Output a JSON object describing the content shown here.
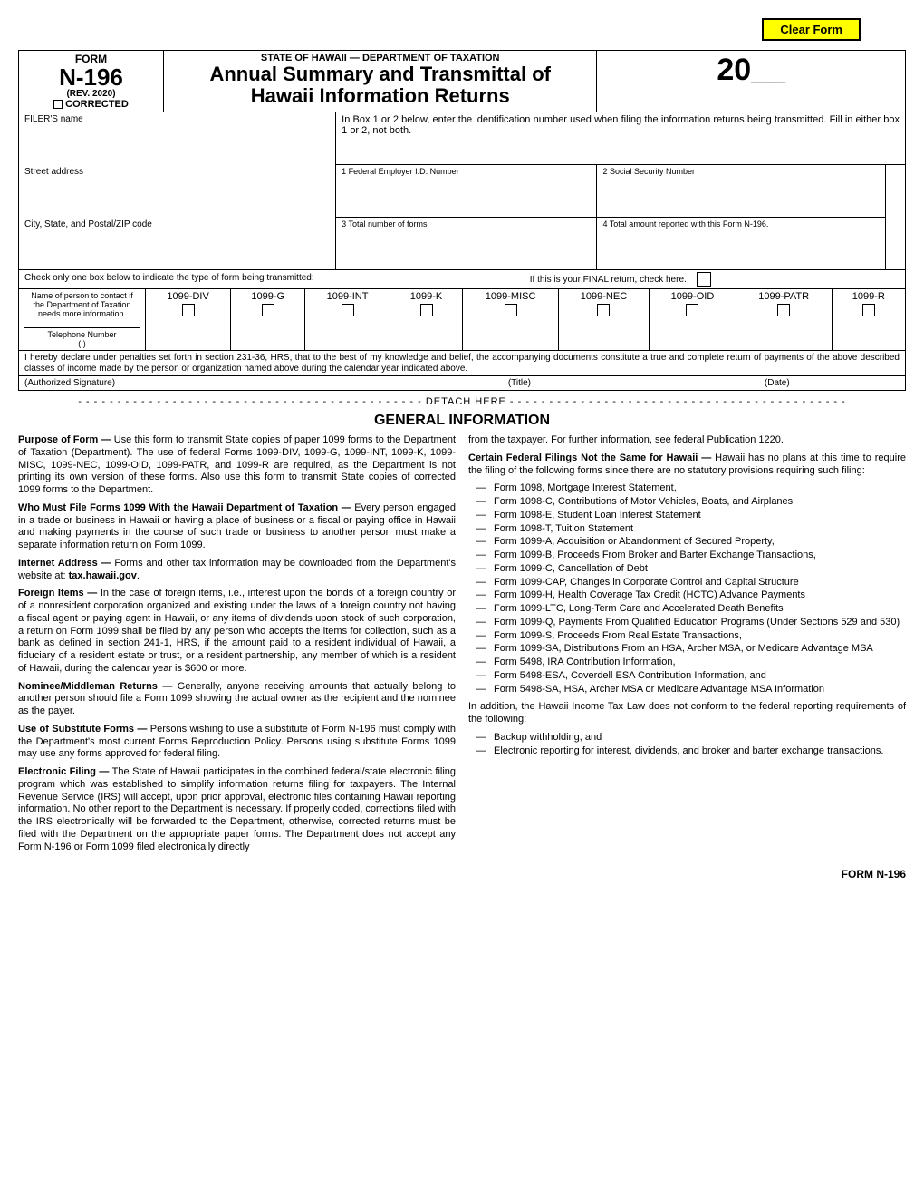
{
  "clear_button": "Clear Form",
  "header": {
    "form_label": "FORM",
    "form_number": "N-196",
    "rev": "(REV. 2020)",
    "corrected": "CORRECTED",
    "dept": "STATE OF HAWAII — DEPARTMENT OF TAXATION",
    "title_line1": "Annual Summary and Transmittal of",
    "title_line2": "Hawaii Information Returns",
    "year_prefix": "20",
    "year_blank": "__"
  },
  "fields": {
    "filers_name": "FILER'S name",
    "street": "Street address",
    "city": "City, State, and Postal/ZIP code",
    "box_instr": "In Box 1 or 2 below, enter the identification number used when filing the information returns being transmitted.  Fill in either box 1 or 2, not both.",
    "box1": "1   Federal Employer I.D. Number",
    "box2": "2   Social Security Number",
    "box3": "3   Total number of forms",
    "box4": "4   Total amount reported with this Form N-196.",
    "check_one": "Check only one box below to indicate the type of form being transmitted:",
    "final": "If this is your FINAL return, check here.",
    "contact_line1": "Name of person to contact if the Department of Taxation needs more information.",
    "contact_line2": "Telephone Number",
    "phone_paren": "(          )"
  },
  "form_types": [
    "1099-DIV",
    "1099-G",
    "1099-INT",
    "1099-K",
    "1099-MISC",
    "1099-NEC",
    "1099-OID",
    "1099-PATR",
    "1099-R"
  ],
  "declaration": "I hereby declare under penalties set forth in section 231-36, HRS, that to the best of my knowledge and belief, the accompanying documents constitute a true and complete return of payments of the above described classes of income made by the person or organization named above during the calendar year indicated above.",
  "sig": {
    "auth": "(Authorized Signature)",
    "title": "(Title)",
    "date": "(Date)"
  },
  "detach": "DETACH HERE",
  "gen_title": "GENERAL INFORMATION",
  "left_col": {
    "p1_b": "Purpose of Form —",
    "p1": " Use this form to transmit State copies of paper 1099 forms to the Department of Taxation (Department). The use of federal Forms 1099-DIV, 1099-G, 1099-INT, 1099-K, 1099-MISC, 1099-NEC, 1099-OID, 1099-PATR, and 1099-R are required, as the Department is not printing its own version of these forms.  Also use this form to transmit State copies of corrected 1099 forms to the Department.",
    "p2_b": "Who Must File Forms 1099 With the Hawaii Department of Taxation —",
    "p2": " Every person engaged in a trade or business in Hawaii or having a place of business or a fiscal or paying office in Hawaii and making payments in the course of such trade or business to another person must make a separate information return on Form 1099.",
    "p3_b": "Internet Address —",
    "p3": " Forms and other tax information may be downloaded from the Department's website at: ",
    "p3_url": "tax.hawaii.gov",
    "p4_b": "Foreign Items —",
    "p4": " In the case of foreign items, i.e., interest upon the bonds of a foreign country or of a nonresident corporation organized and existing under the laws of a foreign country not having a fiscal agent or paying agent in Hawaii, or any items of dividends upon stock of such corporation, a return on Form 1099 shall be filed by any person who accepts the items for collection, such as a bank as defined in section 241-1, HRS, if the amount paid to a resident individual of Hawaii, a fiduciary of a resident estate or trust, or a resident partnership, any member of which is a resident of Hawaii, during the calendar year is $600 or more.",
    "p5_b": "Nominee/Middleman Returns —",
    "p5": " Generally, anyone receiving amounts that actually belong to another person should file a Form 1099 showing the actual owner as the recipient and the nominee as the payer.",
    "p6_b": "Use of Substitute Forms —",
    "p6": " Persons wishing to use a substitute of Form N-196 must comply with the Department's most current Forms Reproduction Policy.  Persons using substitute Forms 1099 may use any forms approved for federal filing.",
    "p7_b": "Electronic Filing —",
    "p7": " The State of Hawaii participates in the combined federal/state electronic filing program which was established to simplify information returns filing for taxpayers. The Internal Revenue Service (IRS) will accept, upon prior approval, electronic files containing Hawaii reporting information. No other report to the Department is necessary. If properly coded, corrections filed with the IRS electronically will be forwarded to the Department, otherwise, corrected returns must be filed with the Department on the appropriate paper forms. The Department does not accept any Form N-196 or Form 1099 filed electronically directly"
  },
  "right_col": {
    "p0": "from the taxpayer.  For further information, see federal Publication 1220.",
    "p1_b": "Certain Federal Filings Not the Same for Hawaii —",
    "p1": " Hawaii has no plans at this time to require the filing of the following forms since there are no statutory provisions requiring such filing:",
    "list1": [
      "Form 1098, Mortgage Interest Statement,",
      "Form 1098-C, Contributions of Motor Vehicles, Boats, and Airplanes",
      "Form 1098-E, Student Loan Interest Statement",
      "Form 1098-T, Tuition Statement",
      "Form 1099-A, Acquisition or Abandonment of Secured Property,",
      "Form 1099-B, Proceeds From Broker and Barter Exchange Transactions,",
      "Form 1099-C, Cancellation of Debt",
      "Form 1099-CAP, Changes in Corporate Control and Capital Structure",
      "Form 1099-H, Health Coverage Tax Credit (HCTC) Advance Payments",
      "Form 1099-LTC, Long-Term Care and Accelerated Death Benefits",
      "Form 1099-Q, Payments From Qualified Education Programs (Under Sections 529 and 530)",
      "Form 1099-S, Proceeds From Real Estate Transactions,",
      "Form 1099-SA, Distributions From an HSA, Archer MSA, or Medicare Advantage MSA",
      "Form 5498, IRA Contribution Information,",
      "Form 5498-ESA, Coverdell ESA Contribution Information, and",
      "Form 5498-SA, HSA, Archer MSA or Medicare Advantage MSA Information"
    ],
    "p2": "In addition, the Hawaii Income Tax Law does not conform to the federal reporting requirements of the following:",
    "list2": [
      "Backup withholding, and",
      "Electronic reporting for interest, dividends, and broker and barter exchange transactions."
    ]
  },
  "footer": "FORM N-196"
}
